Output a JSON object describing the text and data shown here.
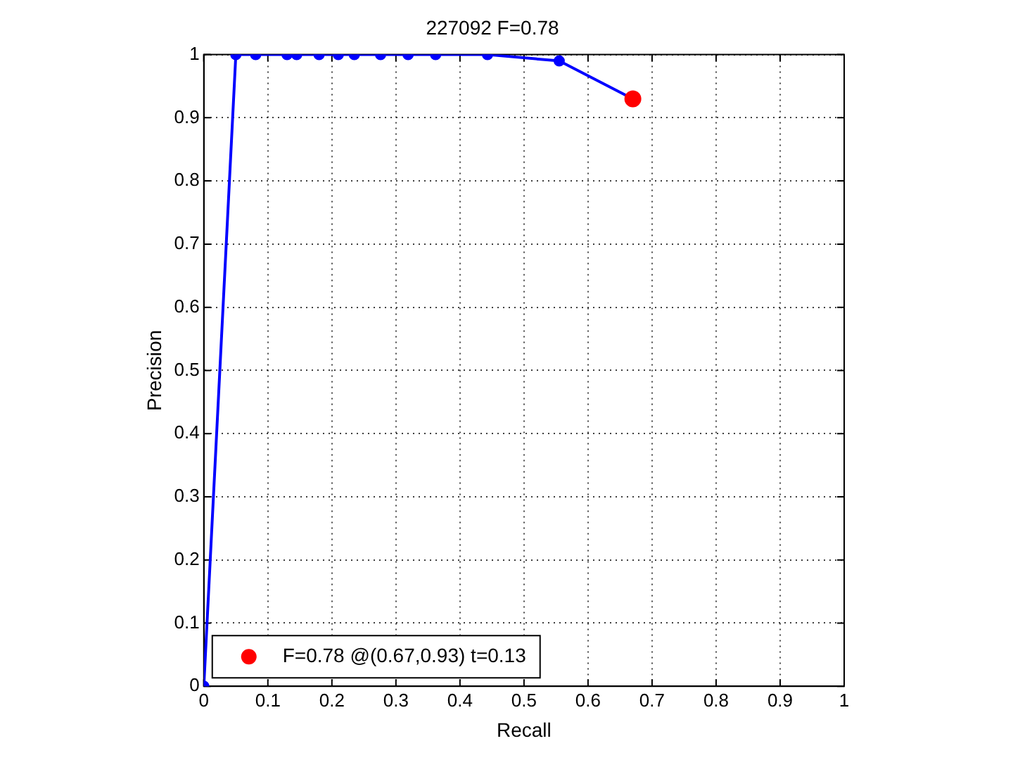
{
  "chart_data": {
    "type": "line",
    "title": "227092 F=0.78",
    "xlabel": "Recall",
    "ylabel": "Precision",
    "series": [
      {
        "color": "#0000ff",
        "x": [
          0,
          0.05,
          0.081,
          0.13,
          0.145,
          0.18,
          0.21,
          0.235,
          0.276,
          0.319,
          0.362,
          0.443,
          0.555,
          0.67
        ],
        "values": [
          0,
          1,
          1,
          1,
          1,
          1,
          1,
          1,
          1,
          1,
          1,
          1,
          0.99,
          0.93
        ],
        "marker": "circle"
      },
      {
        "type": "scatter",
        "name": "F=0.78 @(0.67,0.93) t=0.13",
        "color": "#ff0000",
        "x": [
          0.67
        ],
        "values": [
          0.93
        ],
        "marker": "circle"
      }
    ],
    "xlim": [
      0,
      1
    ],
    "xticks": [
      0,
      0.1,
      0.2,
      0.3,
      0.4,
      0.5,
      0.6,
      0.7,
      0.8,
      0.9,
      1
    ],
    "ylim": [
      0,
      1
    ],
    "yticks": [
      0,
      0.1,
      0.2,
      0.3,
      0.4,
      0.5,
      0.6,
      0.7,
      0.8,
      0.9,
      1
    ],
    "grid": true,
    "legend": "bottom left"
  }
}
